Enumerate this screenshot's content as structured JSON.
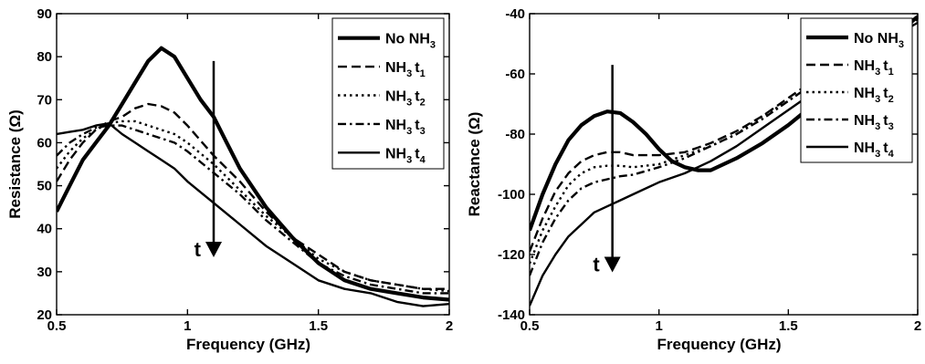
{
  "chart_data": [
    {
      "type": "line",
      "xlabel": "Frequency (GHz)",
      "ylabel": "Resistance (Ω)",
      "xlim": [
        0.5,
        2
      ],
      "ylim": [
        20,
        90
      ],
      "xticks": [
        {
          "v": 0.5,
          "label": "0.5"
        },
        {
          "v": 1,
          "label": "1"
        },
        {
          "v": 1.5,
          "label": "1.5"
        },
        {
          "v": 2,
          "label": "2"
        }
      ],
      "yticks": [
        {
          "v": 20,
          "label": "20"
        },
        {
          "v": 30,
          "label": "30"
        },
        {
          "v": 40,
          "label": "40"
        },
        {
          "v": 50,
          "label": "50"
        },
        {
          "v": 60,
          "label": "60"
        },
        {
          "v": 70,
          "label": "70"
        },
        {
          "v": 80,
          "label": "80"
        },
        {
          "v": 90,
          "label": "90"
        }
      ],
      "legend_position": "top-right",
      "grid": false,
      "annotation": {
        "label": "t",
        "x": 1.1,
        "y_from": 79,
        "y_to": 34
      },
      "series": [
        {
          "name": "No NH3",
          "base": "No NH",
          "sub": "3",
          "t": "",
          "tsub": "",
          "dash": "solid",
          "weight": "thick",
          "x": [
            0.5,
            0.55,
            0.6,
            0.65,
            0.7,
            0.75,
            0.8,
            0.85,
            0.9,
            0.95,
            1.0,
            1.05,
            1.1,
            1.15,
            1.2,
            1.3,
            1.4,
            1.5,
            1.6,
            1.7,
            1.8,
            1.9,
            2.0
          ],
          "y": [
            44,
            50,
            56,
            60,
            64,
            69,
            74,
            79,
            82,
            80,
            75,
            70,
            66,
            60,
            54,
            45,
            38,
            32,
            28,
            26,
            25,
            24,
            23.5
          ]
        },
        {
          "name": "NH3 t1",
          "base": "NH",
          "sub": "3",
          "t": "t",
          "tsub": "1",
          "dash": "dash",
          "weight": "medium",
          "x": [
            0.5,
            0.55,
            0.6,
            0.65,
            0.7,
            0.75,
            0.8,
            0.85,
            0.9,
            0.95,
            1.0,
            1.1,
            1.2,
            1.3,
            1.4,
            1.5,
            1.6,
            1.7,
            1.8,
            1.9,
            2.0
          ],
          "y": [
            51,
            56,
            60,
            63,
            65,
            66,
            68,
            69,
            68.5,
            67,
            64,
            57,
            51,
            44,
            38,
            34,
            30,
            28,
            27,
            26,
            26
          ]
        },
        {
          "name": "NH3 t2",
          "base": "NH",
          "sub": "3",
          "t": "t",
          "tsub": "2",
          "dash": "dot",
          "weight": "medium",
          "x": [
            0.5,
            0.55,
            0.6,
            0.65,
            0.7,
            0.75,
            0.8,
            0.85,
            0.9,
            0.95,
            1.0,
            1.1,
            1.2,
            1.3,
            1.4,
            1.5,
            1.6,
            1.7,
            1.8,
            1.9,
            2.0
          ],
          "y": [
            54,
            58,
            61,
            63,
            64.5,
            65,
            65,
            64,
            63,
            62,
            60,
            55,
            49,
            43,
            38,
            33,
            30,
            28,
            27,
            26,
            25.5
          ]
        },
        {
          "name": "NH3 t3",
          "base": "NH",
          "sub": "3",
          "t": "t",
          "tsub": "3",
          "dash": "dashdot",
          "weight": "medium",
          "x": [
            0.5,
            0.55,
            0.6,
            0.65,
            0.7,
            0.75,
            0.8,
            0.85,
            0.9,
            0.95,
            1.0,
            1.1,
            1.2,
            1.3,
            1.4,
            1.5,
            1.6,
            1.7,
            1.8,
            1.9,
            2.0
          ],
          "y": [
            57,
            60,
            62,
            63.5,
            64,
            64,
            63,
            62,
            61,
            60,
            58,
            53,
            48,
            42,
            37,
            32,
            29,
            27,
            26,
            25,
            25
          ]
        },
        {
          "name": "NH3 t4",
          "base": "NH",
          "sub": "3",
          "t": "t",
          "tsub": "4",
          "dash": "solid",
          "weight": "medium",
          "x": [
            0.5,
            0.55,
            0.6,
            0.65,
            0.7,
            0.75,
            0.8,
            0.85,
            0.9,
            0.95,
            1.0,
            1.1,
            1.2,
            1.3,
            1.4,
            1.5,
            1.6,
            1.7,
            1.8,
            1.9,
            2.0
          ],
          "y": [
            62,
            62.5,
            63,
            64,
            64.5,
            62,
            60,
            58,
            56,
            54,
            51,
            46,
            41,
            36,
            32,
            28,
            26,
            25,
            23,
            22,
            22.5
          ]
        }
      ]
    },
    {
      "type": "line",
      "xlabel": "Frequency (GHz)",
      "ylabel": "Reactance (Ω)",
      "xlim": [
        0.5,
        2
      ],
      "ylim": [
        -140,
        -40
      ],
      "xticks": [
        {
          "v": 0.5,
          "label": "0.5"
        },
        {
          "v": 1,
          "label": "1"
        },
        {
          "v": 1.5,
          "label": "1.5"
        },
        {
          "v": 2,
          "label": "2"
        }
      ],
      "yticks": [
        {
          "v": -140,
          "label": "-140"
        },
        {
          "v": -120,
          "label": "-120"
        },
        {
          "v": -100,
          "label": "-100"
        },
        {
          "v": -80,
          "label": "-80"
        },
        {
          "v": -60,
          "label": "-60"
        },
        {
          "v": -40,
          "label": "-40"
        }
      ],
      "legend_position": "top-right",
      "grid": false,
      "annotation": {
        "label": "t",
        "x": 0.82,
        "y_from": -57,
        "y_to": -125
      },
      "series": [
        {
          "name": "No NH3",
          "base": "No NH",
          "sub": "3",
          "t": "",
          "tsub": "",
          "dash": "solid",
          "weight": "thick",
          "x": [
            0.5,
            0.55,
            0.6,
            0.65,
            0.7,
            0.75,
            0.8,
            0.85,
            0.9,
            0.95,
            1.0,
            1.05,
            1.1,
            1.15,
            1.2,
            1.3,
            1.4,
            1.5,
            1.6,
            1.7,
            1.8,
            1.9,
            2.0
          ],
          "y": [
            -112,
            -100,
            -90,
            -82,
            -77,
            -74,
            -72.5,
            -73,
            -76,
            -80,
            -85,
            -89,
            -91,
            -92,
            -92,
            -88,
            -83,
            -77,
            -70,
            -62,
            -55,
            -48,
            -41
          ]
        },
        {
          "name": "NH3 t1",
          "base": "NH",
          "sub": "3",
          "t": "t",
          "tsub": "1",
          "dash": "dash",
          "weight": "medium",
          "x": [
            0.5,
            0.55,
            0.6,
            0.65,
            0.7,
            0.75,
            0.8,
            0.85,
            0.9,
            1.0,
            1.1,
            1.2,
            1.3,
            1.4,
            1.5,
            1.6,
            1.7,
            1.8,
            1.9,
            2.0
          ],
          "y": [
            -119,
            -108,
            -99,
            -93,
            -89,
            -87,
            -86,
            -86,
            -87,
            -87,
            -86,
            -83,
            -79,
            -74,
            -68,
            -62,
            -56,
            -51,
            -46,
            -42
          ]
        },
        {
          "name": "NH3 t2",
          "base": "NH",
          "sub": "3",
          "t": "t",
          "tsub": "2",
          "dash": "dot",
          "weight": "medium",
          "x": [
            0.5,
            0.55,
            0.6,
            0.65,
            0.7,
            0.75,
            0.8,
            0.85,
            0.9,
            1.0,
            1.1,
            1.2,
            1.3,
            1.4,
            1.5,
            1.6,
            1.7,
            1.8,
            1.9,
            2.0
          ],
          "y": [
            -123,
            -112,
            -104,
            -97,
            -93,
            -91,
            -90.5,
            -90.5,
            -91,
            -90,
            -87,
            -84,
            -80,
            -74,
            -69,
            -63,
            -57,
            -51,
            -46,
            -42
          ]
        },
        {
          "name": "NH3 t3",
          "base": "NH",
          "sub": "3",
          "t": "t",
          "tsub": "3",
          "dash": "dashdot",
          "weight": "medium",
          "x": [
            0.5,
            0.55,
            0.6,
            0.65,
            0.7,
            0.75,
            0.8,
            0.85,
            0.9,
            1.0,
            1.1,
            1.2,
            1.3,
            1.4,
            1.5,
            1.6,
            1.7,
            1.8,
            1.9,
            2.0
          ],
          "y": [
            -127,
            -116,
            -108,
            -102,
            -98,
            -96,
            -95,
            -94,
            -93.5,
            -91,
            -88,
            -84,
            -80,
            -75,
            -69,
            -63,
            -57,
            -51,
            -46,
            -42
          ]
        },
        {
          "name": "NH3 t4",
          "base": "NH",
          "sub": "3",
          "t": "t",
          "tsub": "4",
          "dash": "solid",
          "weight": "medium",
          "x": [
            0.5,
            0.55,
            0.6,
            0.65,
            0.7,
            0.75,
            0.8,
            0.85,
            0.9,
            1.0,
            1.1,
            1.2,
            1.3,
            1.4,
            1.5,
            1.6,
            1.7,
            1.8,
            1.9,
            2.0
          ],
          "y": [
            -137,
            -127,
            -120,
            -114,
            -110,
            -106,
            -104,
            -102,
            -100,
            -96,
            -93,
            -89,
            -84,
            -78,
            -72,
            -66,
            -60,
            -54,
            -48,
            -43
          ]
        }
      ]
    }
  ]
}
